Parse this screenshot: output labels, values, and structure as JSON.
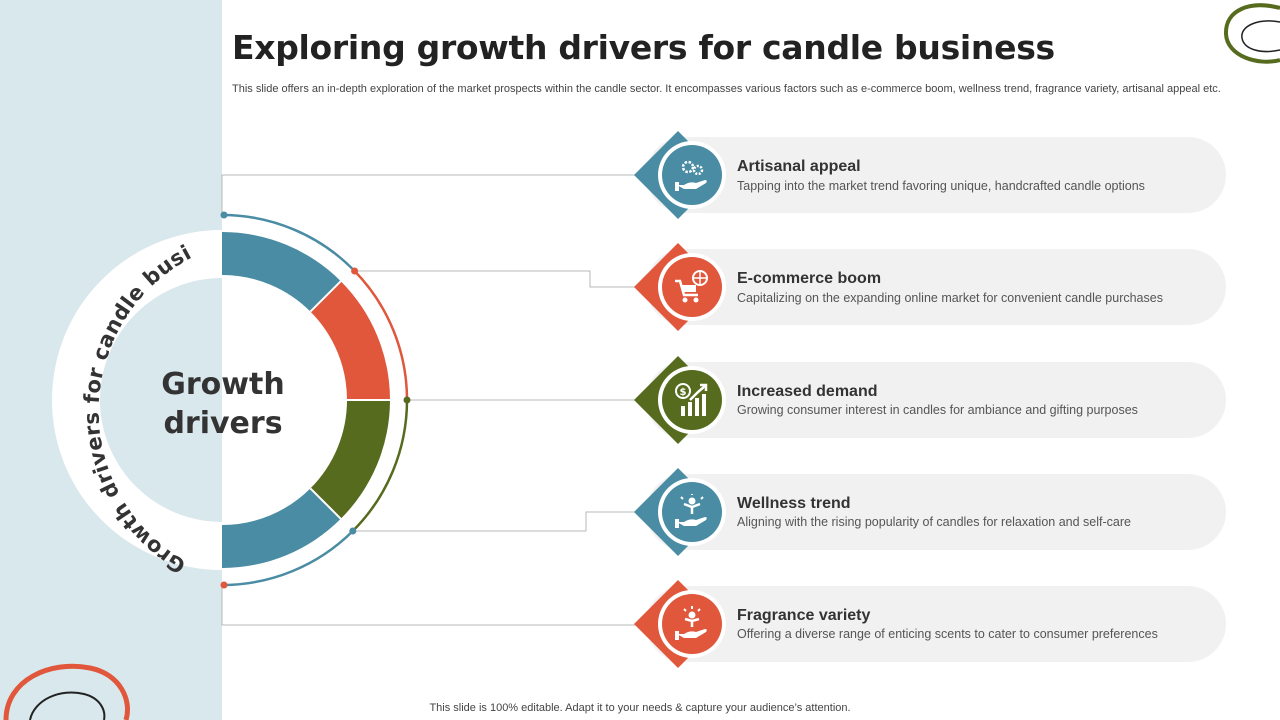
{
  "header": {
    "title": "Exploring growth drivers for candle business",
    "subtitle": "This slide offers an in-depth exploration of the market prospects within the candle sector. It encompasses various factors such as e-commerce boom, wellness trend, fragrance variety, artisanal appeal etc."
  },
  "center": {
    "label_line1": "Growth",
    "label_line2": "drivers",
    "ring_text": "Growth drivers for candle business"
  },
  "colors": {
    "teal": "#4a8ca3",
    "red": "#e0573c",
    "olive": "#566b1e",
    "side_panel": "#d9e8ed"
  },
  "drivers": [
    {
      "title": "Artisanal appeal",
      "description": "Tapping into the market trend favoring unique, handcrafted candle options",
      "color": "#4a8ca3",
      "icon": "hand-gears-icon"
    },
    {
      "title": "E-commerce boom",
      "description": "Capitalizing on the expanding online market for convenient candle purchases",
      "color": "#e0573c",
      "icon": "shopping-cart-globe-icon"
    },
    {
      "title": "Increased demand",
      "description": "Growing consumer interest in candles for ambiance and gifting purposes",
      "color": "#566b1e",
      "icon": "growth-chart-dollar-icon"
    },
    {
      "title": "Wellness trend",
      "description": "Aligning with the rising popularity of candles for relaxation and self-care",
      "color": "#4a8ca3",
      "icon": "hand-wellness-person-icon"
    },
    {
      "title": "Fragrance variety",
      "description": "Offering a diverse range of enticing scents to cater to consumer preferences",
      "color": "#e0573c",
      "icon": "hand-sparkle-person-icon"
    }
  ],
  "footer": {
    "note": "This slide is 100% editable. Adapt it to your needs & capture your audience’s attention."
  }
}
